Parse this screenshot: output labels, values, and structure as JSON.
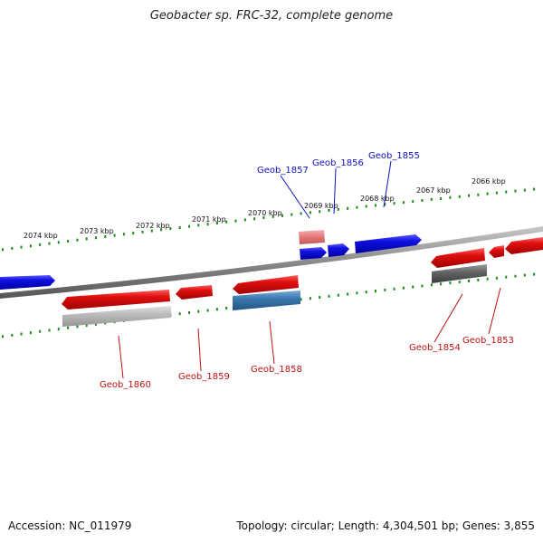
{
  "title": "Geobacter sp. FRC-32, complete genome",
  "footer": {
    "accession": "Accession: NC_011979",
    "summary": "Topology: circular; Length: 4,304,501 bp; Genes: 3,855"
  },
  "ticks": [
    "2074 kbp",
    "2073 kbp",
    "2072 kbp",
    "2071 kbp",
    "2070 kbp",
    "2069 kbp",
    "2068 kbp",
    "2067 kbp",
    "2066 kbp"
  ],
  "labels": {
    "top": [
      "Geob_1857",
      "Geob_1856",
      "Geob_1855"
    ],
    "bottom": [
      "Geob_1860",
      "Geob_1859",
      "Geob_1858",
      "Geob_1854",
      "Geob_1853"
    ]
  },
  "colors": {
    "forward_gene": "#1010e0",
    "reverse_gene": "#e01010",
    "pseudo_forward": "#e88080",
    "rna_gene": "#3a78b0",
    "cds_gray": "#b8b8b8",
    "cds_dark": "#666666",
    "tick_green": "#1a8a1a",
    "backbone": "#888888"
  }
}
